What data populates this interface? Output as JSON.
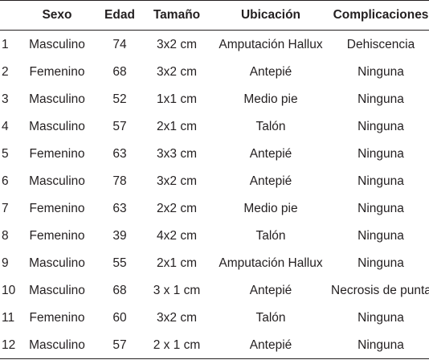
{
  "table": {
    "headers": {
      "num": "",
      "sexo": "Sexo",
      "edad": "Edad",
      "tamano": "Tamaño",
      "ubicacion": "Ubicación",
      "complicaciones": "Complicaciones"
    },
    "rows": [
      {
        "num": "1",
        "sexo": "Masculino",
        "edad": "74",
        "tamano": "3x2 cm",
        "ubicacion": "Amputación Hallux",
        "complicaciones": "Dehiscencia"
      },
      {
        "num": "2",
        "sexo": "Femenino",
        "edad": "68",
        "tamano": "3x2 cm",
        "ubicacion": "Antepié",
        "complicaciones": "Ninguna"
      },
      {
        "num": "3",
        "sexo": "Masculino",
        "edad": "52",
        "tamano": "1x1 cm",
        "ubicacion": "Medio pie",
        "complicaciones": "Ninguna"
      },
      {
        "num": "4",
        "sexo": "Masculino",
        "edad": "57",
        "tamano": "2x1 cm",
        "ubicacion": "Talón",
        "complicaciones": "Ninguna"
      },
      {
        "num": "5",
        "sexo": "Femenino",
        "edad": "63",
        "tamano": "3x3 cm",
        "ubicacion": "Antepié",
        "complicaciones": "Ninguna"
      },
      {
        "num": "6",
        "sexo": "Masculino",
        "edad": "78",
        "tamano": "3x2 cm",
        "ubicacion": "Antepié",
        "complicaciones": "Ninguna"
      },
      {
        "num": "7",
        "sexo": "Femenino",
        "edad": "63",
        "tamano": "2x2 cm",
        "ubicacion": "Medio pie",
        "complicaciones": "Ninguna"
      },
      {
        "num": "8",
        "sexo": "Femenino",
        "edad": "39",
        "tamano": "4x2 cm",
        "ubicacion": "Talón",
        "complicaciones": "Ninguna"
      },
      {
        "num": "9",
        "sexo": "Masculino",
        "edad": "55",
        "tamano": "2x1 cm",
        "ubicacion": "Amputación Hallux",
        "complicaciones": "Ninguna"
      },
      {
        "num": "10",
        "sexo": "Masculino",
        "edad": "68",
        "tamano": "3 x 1 cm",
        "ubicacion": "Antepié",
        "complicaciones": "Necrosis de punta"
      },
      {
        "num": "11",
        "sexo": "Femenino",
        "edad": "60",
        "tamano": "3x2 cm",
        "ubicacion": "Talón",
        "complicaciones": "Ninguna"
      },
      {
        "num": "12",
        "sexo": "Masculino",
        "edad": "57",
        "tamano": "2 x 1 cm",
        "ubicacion": "Antepié",
        "complicaciones": "Ninguna"
      }
    ]
  }
}
